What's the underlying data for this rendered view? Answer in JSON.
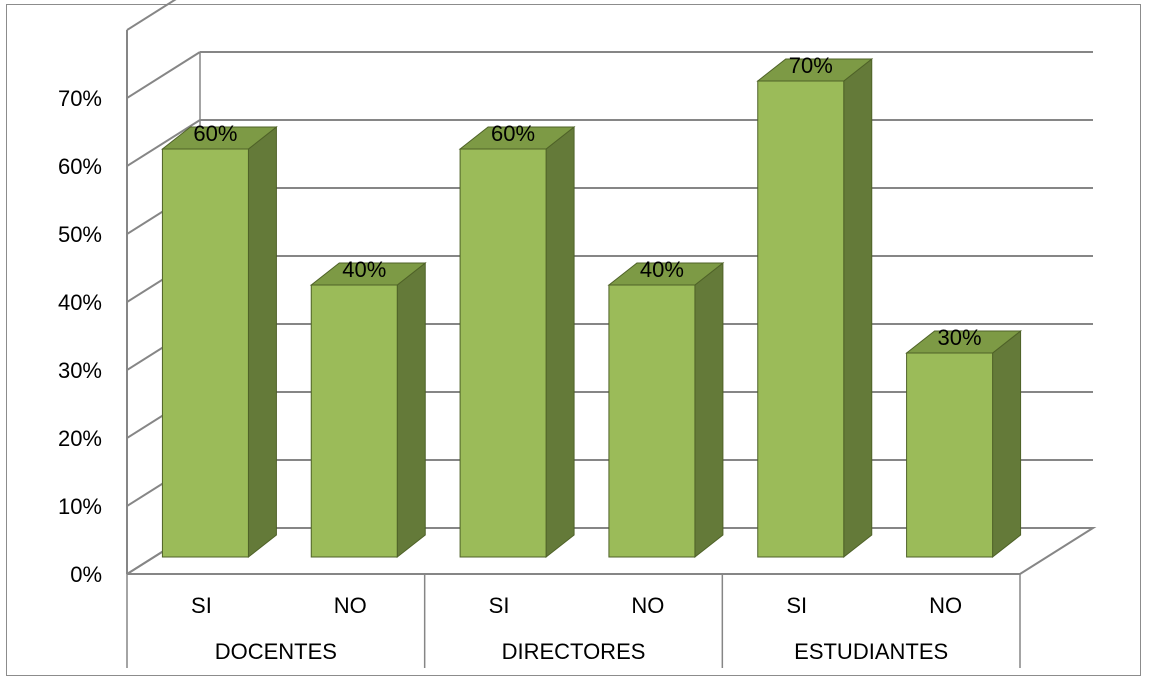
{
  "chart_data": {
    "type": "bar",
    "style": "3d-clustered-column",
    "groups": [
      "DOCENTES",
      "DIRECTORES",
      "ESTUDIANTES"
    ],
    "categories": [
      "SI",
      "NO",
      "SI",
      "NO",
      "SI",
      "NO"
    ],
    "values": [
      60,
      40,
      60,
      40,
      70,
      30
    ],
    "data_labels": [
      "60%",
      "40%",
      "60%",
      "40%",
      "70%",
      "30%"
    ],
    "yticks": [
      "0%",
      "10%",
      "20%",
      "30%",
      "40%",
      "50%",
      "60%",
      "70%"
    ],
    "ylim": [
      0,
      70
    ],
    "grid": true,
    "legend": "none",
    "colors": {
      "bar_front": "#9bbb59",
      "bar_side": "#647a39",
      "bar_top": "#7d9a45",
      "bar_edge": "#4f6228",
      "grid": "#868686"
    }
  }
}
